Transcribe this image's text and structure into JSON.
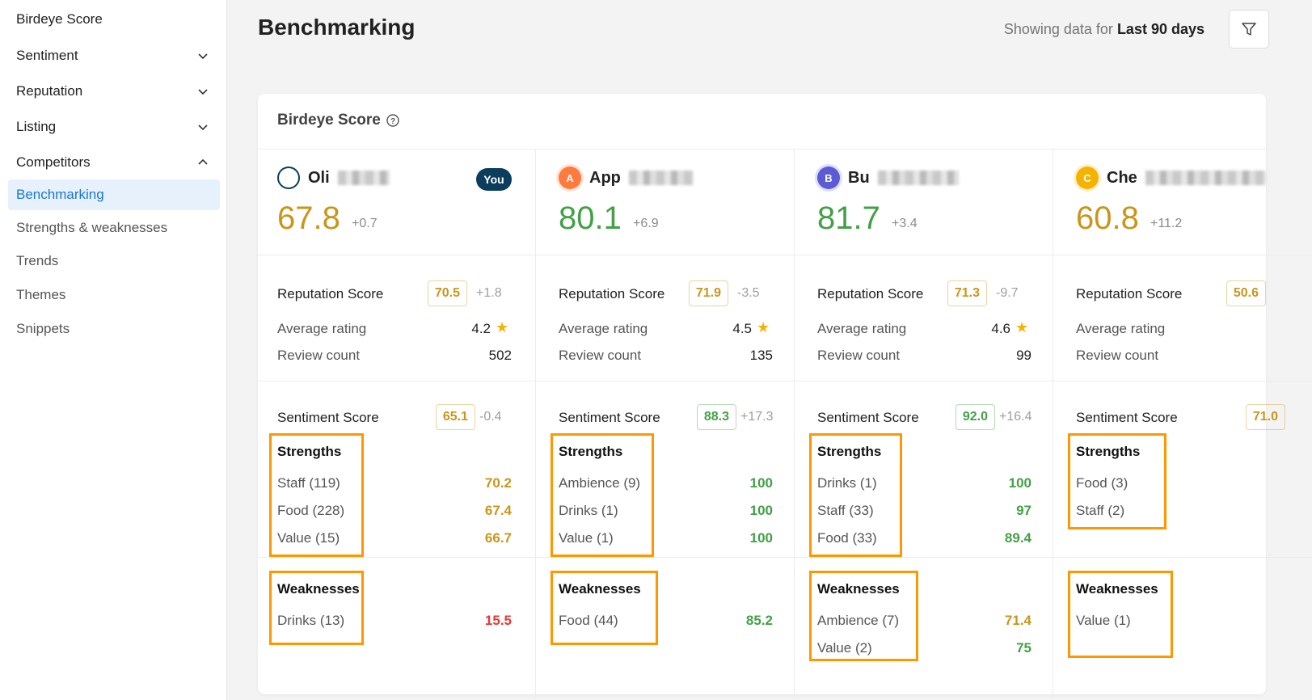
{
  "sidebar": {
    "items": [
      {
        "label": "Birdeye Score"
      },
      {
        "label": "Sentiment"
      },
      {
        "label": "Reputation"
      },
      {
        "label": "Listing"
      },
      {
        "label": "Competitors"
      }
    ],
    "sub_items": [
      {
        "label": "Benchmarking",
        "active": true
      },
      {
        "label": "Strengths & weaknesses"
      },
      {
        "label": "Trends"
      },
      {
        "label": "Themes"
      },
      {
        "label": "Snippets"
      }
    ]
  },
  "header": {
    "title": "Benchmarking",
    "range_prefix": "Showing data for",
    "range_value": "Last 90 days"
  },
  "card": {
    "title": "Birdeye Score"
  },
  "labels": {
    "reputation_score": "Reputation Score",
    "average_rating": "Average rating",
    "review_count": "Review count",
    "sentiment_score": "Sentiment Score",
    "strengths": "Strengths",
    "weaknesses": "Weaknesses",
    "you": "You"
  },
  "colors": {
    "gold": "#c8961a",
    "green": "#43a047",
    "red": "#e53935",
    "orange_box": "#ff9800"
  },
  "competitors": [
    {
      "name": "Oli",
      "avatar": "",
      "avatar_color": "#ffffff",
      "score": "67.8",
      "score_delta": "+0.7",
      "score_color": "gold",
      "reputation": "70.5",
      "reputation_delta": "+1.8",
      "reputation_color": "gold",
      "avg_rating": "4.2",
      "review_count": "502",
      "sentiment": "65.1",
      "sentiment_delta": "-0.4",
      "sentiment_color": "gold",
      "strengths": [
        {
          "label": "Staff (119)",
          "value": "70.2",
          "color": "gold"
        },
        {
          "label": "Food (228)",
          "value": "67.4",
          "color": "gold"
        },
        {
          "label": "Value (15)",
          "value": "66.7",
          "color": "gold"
        }
      ],
      "weaknesses": [
        {
          "label": "Drinks (13)",
          "value": "15.5",
          "color": "red"
        }
      ]
    },
    {
      "name": "App",
      "avatar": "A",
      "avatar_color": "#ff7a3d",
      "score": "80.1",
      "score_delta": "+6.9",
      "score_color": "green",
      "reputation": "71.9",
      "reputation_delta": "-3.5",
      "reputation_color": "gold",
      "avg_rating": "4.5",
      "review_count": "135",
      "sentiment": "88.3",
      "sentiment_delta": "+17.3",
      "sentiment_color": "green",
      "strengths": [
        {
          "label": "Ambience (9)",
          "value": "100",
          "color": "green"
        },
        {
          "label": "Drinks (1)",
          "value": "100",
          "color": "green"
        },
        {
          "label": "Value (1)",
          "value": "100",
          "color": "green"
        }
      ],
      "weaknesses": [
        {
          "label": "Food (44)",
          "value": "85.2",
          "color": "green"
        }
      ]
    },
    {
      "name": "Bu",
      "avatar": "B",
      "avatar_color": "#5b5bd6",
      "score": "81.7",
      "score_delta": "+3.4",
      "score_color": "green",
      "reputation": "71.3",
      "reputation_delta": "-9.7",
      "reputation_color": "gold",
      "avg_rating": "4.6",
      "review_count": "99",
      "sentiment": "92.0",
      "sentiment_delta": "+16.4",
      "sentiment_color": "green",
      "strengths": [
        {
          "label": "Drinks (1)",
          "value": "100",
          "color": "green"
        },
        {
          "label": "Staff (33)",
          "value": "97",
          "color": "green"
        },
        {
          "label": "Food (33)",
          "value": "89.4",
          "color": "green"
        }
      ],
      "weaknesses": [
        {
          "label": "Ambience (7)",
          "value": "71.4",
          "color": "gold"
        },
        {
          "label": "Value (2)",
          "value": "75",
          "color": "green"
        }
      ]
    },
    {
      "name": "Che",
      "avatar": "C",
      "avatar_color": "#f5b301",
      "score": "60.8",
      "score_delta": "+11.2",
      "score_color": "gold",
      "reputation": "50.6",
      "reputation_delta": "",
      "reputation_color": "gold",
      "avg_rating": "",
      "review_count": "",
      "sentiment": "71.0",
      "sentiment_delta": "",
      "sentiment_color": "gold",
      "strengths": [
        {
          "label": "Food (3)",
          "value": "",
          "color": "gold"
        },
        {
          "label": "Staff (2)",
          "value": "",
          "color": "gold"
        }
      ],
      "weaknesses": [
        {
          "label": "Value (1)",
          "value": "",
          "color": "gold"
        }
      ]
    }
  ]
}
